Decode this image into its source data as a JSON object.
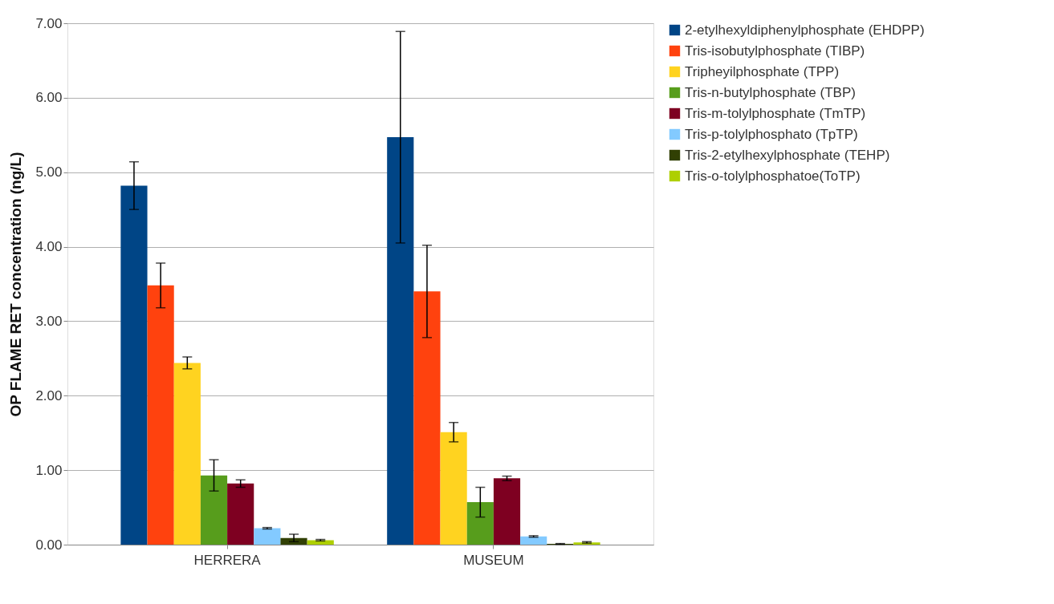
{
  "chart_data": {
    "type": "bar",
    "ylabel": "OP FLAME RET concentration (ng/L)",
    "categories": [
      "HERRERA",
      "MUSEUM"
    ],
    "series": [
      {
        "name": "2-etylhexyldiphenylphosphate (EHDPP)",
        "color": "#004586",
        "values": [
          4.82,
          5.47
        ],
        "errors": [
          0.32,
          1.42
        ]
      },
      {
        "name": "Tris-isobutylphosphate (TIBP)",
        "color": "#ff420e",
        "values": [
          3.48,
          3.4
        ],
        "errors": [
          0.3,
          0.62
        ]
      },
      {
        "name": "Tripheyilphosphate (TPP)",
        "color": "#ffd320",
        "values": [
          2.44,
          1.51
        ],
        "errors": [
          0.08,
          0.13
        ]
      },
      {
        "name": "Tris-n-butylphosphate (TBP)",
        "color": "#579d1c",
        "values": [
          0.93,
          0.57
        ],
        "errors": [
          0.21,
          0.2
        ]
      },
      {
        "name": "Tris-m-tolylphosphate (TmTP)",
        "color": "#7e0021",
        "values": [
          0.82,
          0.89
        ],
        "errors": [
          0.05,
          0.03
        ]
      },
      {
        "name": "Tris-p-tolylphosphato (TpTP)",
        "color": "#83caff",
        "values": [
          0.22,
          0.11
        ],
        "errors": [
          0.01,
          0.01
        ]
      },
      {
        "name": "Tris-2-etylhexylphosphate (TEHP)",
        "color": "#314004",
        "values": [
          0.09,
          0.01
        ],
        "errors": [
          0.05,
          0.005
        ]
      },
      {
        "name": "Tris-o-tolylphosphatoe(ToTP)",
        "color": "#aecf00",
        "values": [
          0.06,
          0.03
        ],
        "errors": [
          0.01,
          0.01
        ]
      }
    ],
    "ylim": [
      0,
      7
    ],
    "yticks": [
      {
        "value": 0,
        "label": "0.00"
      },
      {
        "value": 1,
        "label": "1.00"
      },
      {
        "value": 2,
        "label": "2.00"
      },
      {
        "value": 3,
        "label": "3.00"
      },
      {
        "value": 4,
        "label": "4.00"
      },
      {
        "value": 5,
        "label": "5.00"
      },
      {
        "value": 6,
        "label": "6.00"
      },
      {
        "value": 7,
        "label": "7.00"
      }
    ],
    "grid": "y",
    "legend": "right"
  }
}
